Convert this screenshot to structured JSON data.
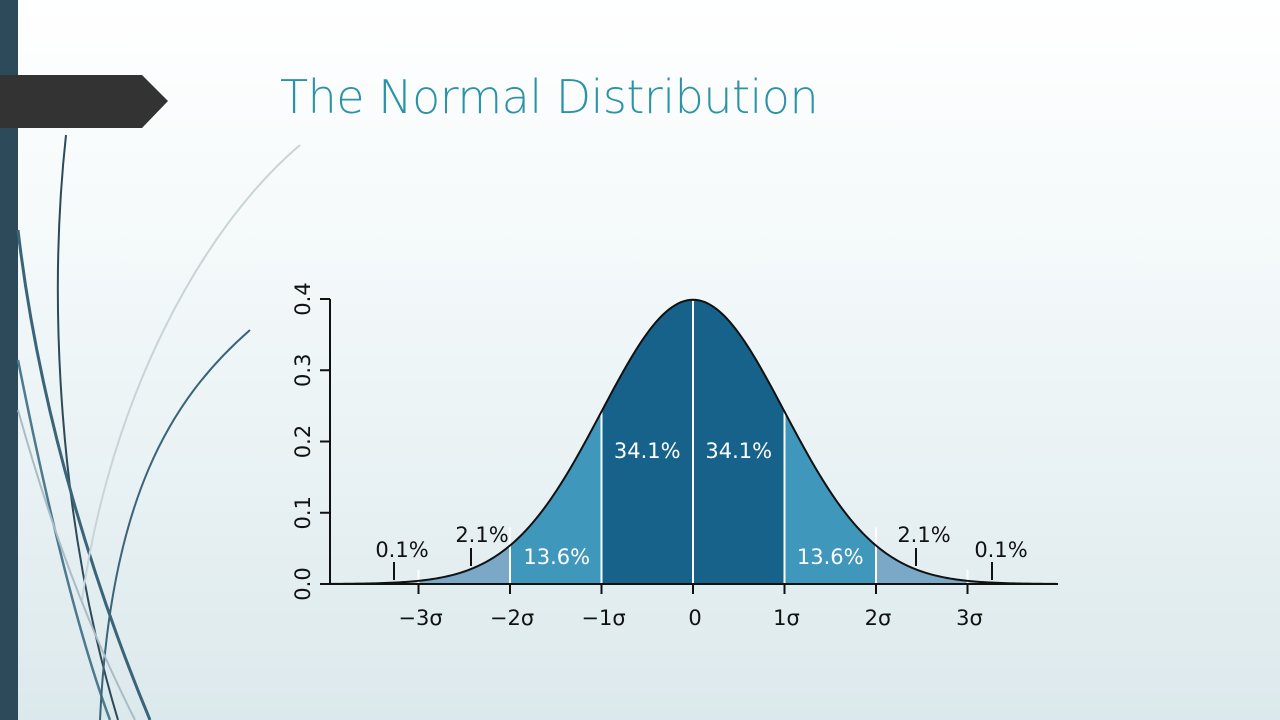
{
  "slide": {
    "title": "The Normal Distribution",
    "accent_color": "#2b93a8",
    "bar_color": "#2c4a5a",
    "tab_color": "#333333"
  },
  "chart_data": {
    "type": "area",
    "title": "",
    "xlabel": "",
    "ylabel": "",
    "distribution": "standard normal",
    "xlim": [
      -4,
      4
    ],
    "ylim": [
      0,
      0.4
    ],
    "x_ticks": [
      {
        "value": -3,
        "label": "−3σ"
      },
      {
        "value": -2,
        "label": "−2σ"
      },
      {
        "value": -1,
        "label": "−1σ"
      },
      {
        "value": 0,
        "label": "0"
      },
      {
        "value": 1,
        "label": "1σ"
      },
      {
        "value": 2,
        "label": "2σ"
      },
      {
        "value": 3,
        "label": "3σ"
      }
    ],
    "y_ticks": [
      {
        "value": 0.0,
        "label": "0.0"
      },
      {
        "value": 0.1,
        "label": "0.1"
      },
      {
        "value": 0.2,
        "label": "0.2"
      },
      {
        "value": 0.3,
        "label": "0.3"
      },
      {
        "value": 0.4,
        "label": "0.4"
      }
    ],
    "regions": [
      {
        "from": -3,
        "to": -2,
        "label": "2.1%",
        "color": "#7aa8c6"
      },
      {
        "from": -2,
        "to": -1,
        "label": "13.6%",
        "color": "#3f97bb"
      },
      {
        "from": -1,
        "to": 0,
        "label": "34.1%",
        "color": "#16628a"
      },
      {
        "from": 0,
        "to": 1,
        "label": "34.1%",
        "color": "#16628a"
      },
      {
        "from": 1,
        "to": 2,
        "label": "13.6%",
        "color": "#3f97bb"
      },
      {
        "from": 2,
        "to": 3,
        "label": "2.1%",
        "color": "#7aa8c6"
      }
    ],
    "tail_labels": [
      {
        "side": "left",
        "label": "0.1%"
      },
      {
        "side": "right",
        "label": "0.1%"
      }
    ],
    "grid": false
  }
}
